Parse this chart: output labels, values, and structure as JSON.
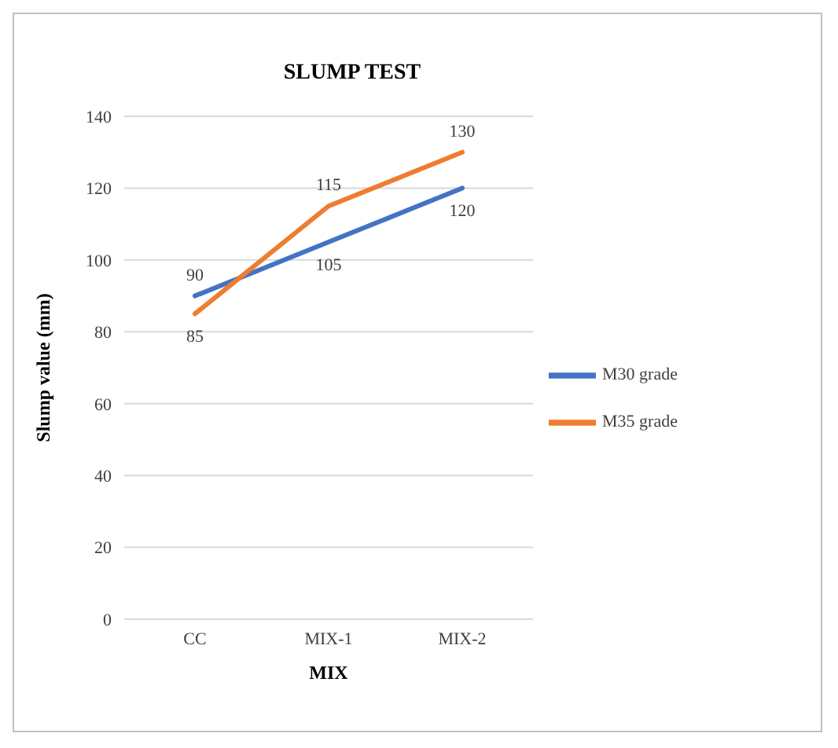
{
  "chart_data": {
    "type": "line",
    "title": "SLUMP TEST",
    "xlabel": "MIX",
    "ylabel": "Slump value (mm)",
    "categories": [
      "CC",
      "MIX-1",
      "MIX-2"
    ],
    "series": [
      {
        "name": "M30 grade",
        "color": "#4472c4",
        "values": [
          90,
          105,
          120
        ]
      },
      {
        "name": "M35 grade",
        "color": "#ed7d31",
        "values": [
          85,
          115,
          130
        ]
      }
    ],
    "ylim": [
      0,
      140
    ],
    "yticks": [
      0,
      20,
      40,
      60,
      80,
      100,
      120,
      140
    ],
    "grid": "y",
    "legend": "right",
    "marker": "none",
    "line_style": "solid",
    "data_labels": true
  }
}
